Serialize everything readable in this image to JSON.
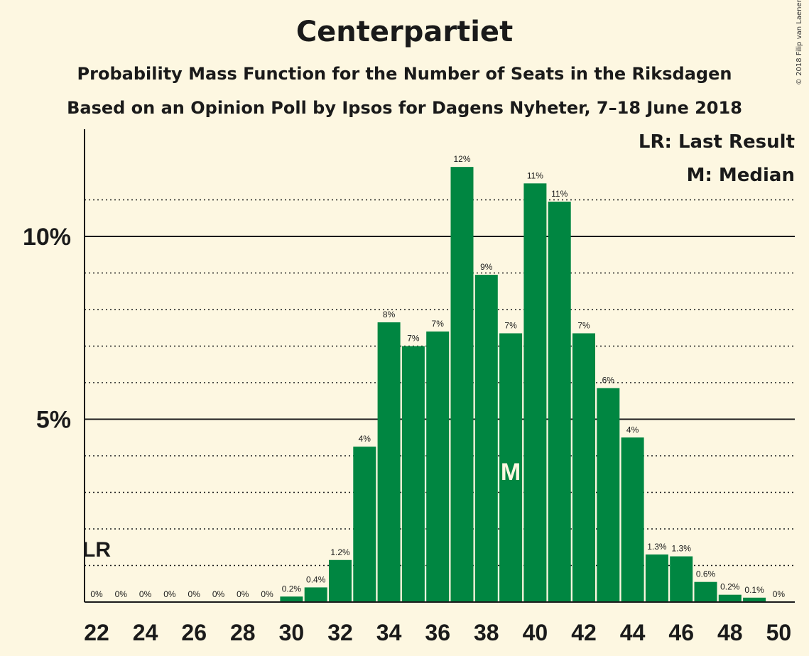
{
  "title": "Centerpartiet",
  "subtitle1": "Probability Mass Function for the Number of Seats in the Riksdagen",
  "subtitle2": "Based on an Opinion Poll by Ipsos for Dagens Nyheter, 7–18 June 2018",
  "copyright": "© 2018 Filip van Laenen",
  "legend": {
    "last_result": "LR: Last Result",
    "median": "M: Median"
  },
  "markers": {
    "last_result_label": "LR",
    "last_result_seat": 22,
    "median_label": "M",
    "median_seat": 39
  },
  "colors": {
    "bar": "#008641",
    "background": "#fdf7e1",
    "text": "#1a1a1a"
  },
  "chart_data": {
    "type": "bar",
    "x": [
      22,
      23,
      24,
      25,
      26,
      27,
      28,
      29,
      30,
      31,
      32,
      33,
      34,
      35,
      36,
      37,
      38,
      39,
      40,
      41,
      42,
      43,
      44,
      45,
      46,
      47,
      48,
      49,
      50
    ],
    "values": [
      0,
      0,
      0,
      0,
      0,
      0,
      0,
      0,
      0.15,
      0.4,
      1.15,
      4.25,
      7.65,
      7.0,
      7.4,
      11.9,
      8.95,
      7.35,
      11.45,
      10.95,
      7.35,
      5.85,
      4.5,
      1.3,
      1.25,
      0.55,
      0.2,
      0.12,
      0
    ],
    "data_labels": [
      "0%",
      "0%",
      "0%",
      "0%",
      "0%",
      "0%",
      "0%",
      "0%",
      "0.2%",
      "0.4%",
      "1.2%",
      "4%",
      "8%",
      "7%",
      "7%",
      "12%",
      "9%",
      "7%",
      "11%",
      "11%",
      "7%",
      "6%",
      "4%",
      "1.3%",
      "1.3%",
      "0.6%",
      "0.2%",
      "0.1%",
      "0%"
    ],
    "x_tick_labels": [
      "22",
      "24",
      "26",
      "28",
      "30",
      "32",
      "34",
      "36",
      "38",
      "40",
      "42",
      "44",
      "46",
      "48",
      "50"
    ],
    "y_tick_labels": [
      {
        "value": 5,
        "label": "5%"
      },
      {
        "value": 10,
        "label": "10%"
      }
    ],
    "ylim": [
      0,
      13
    ],
    "grid": "dotted every 1%, solid at 5% and 10%"
  }
}
